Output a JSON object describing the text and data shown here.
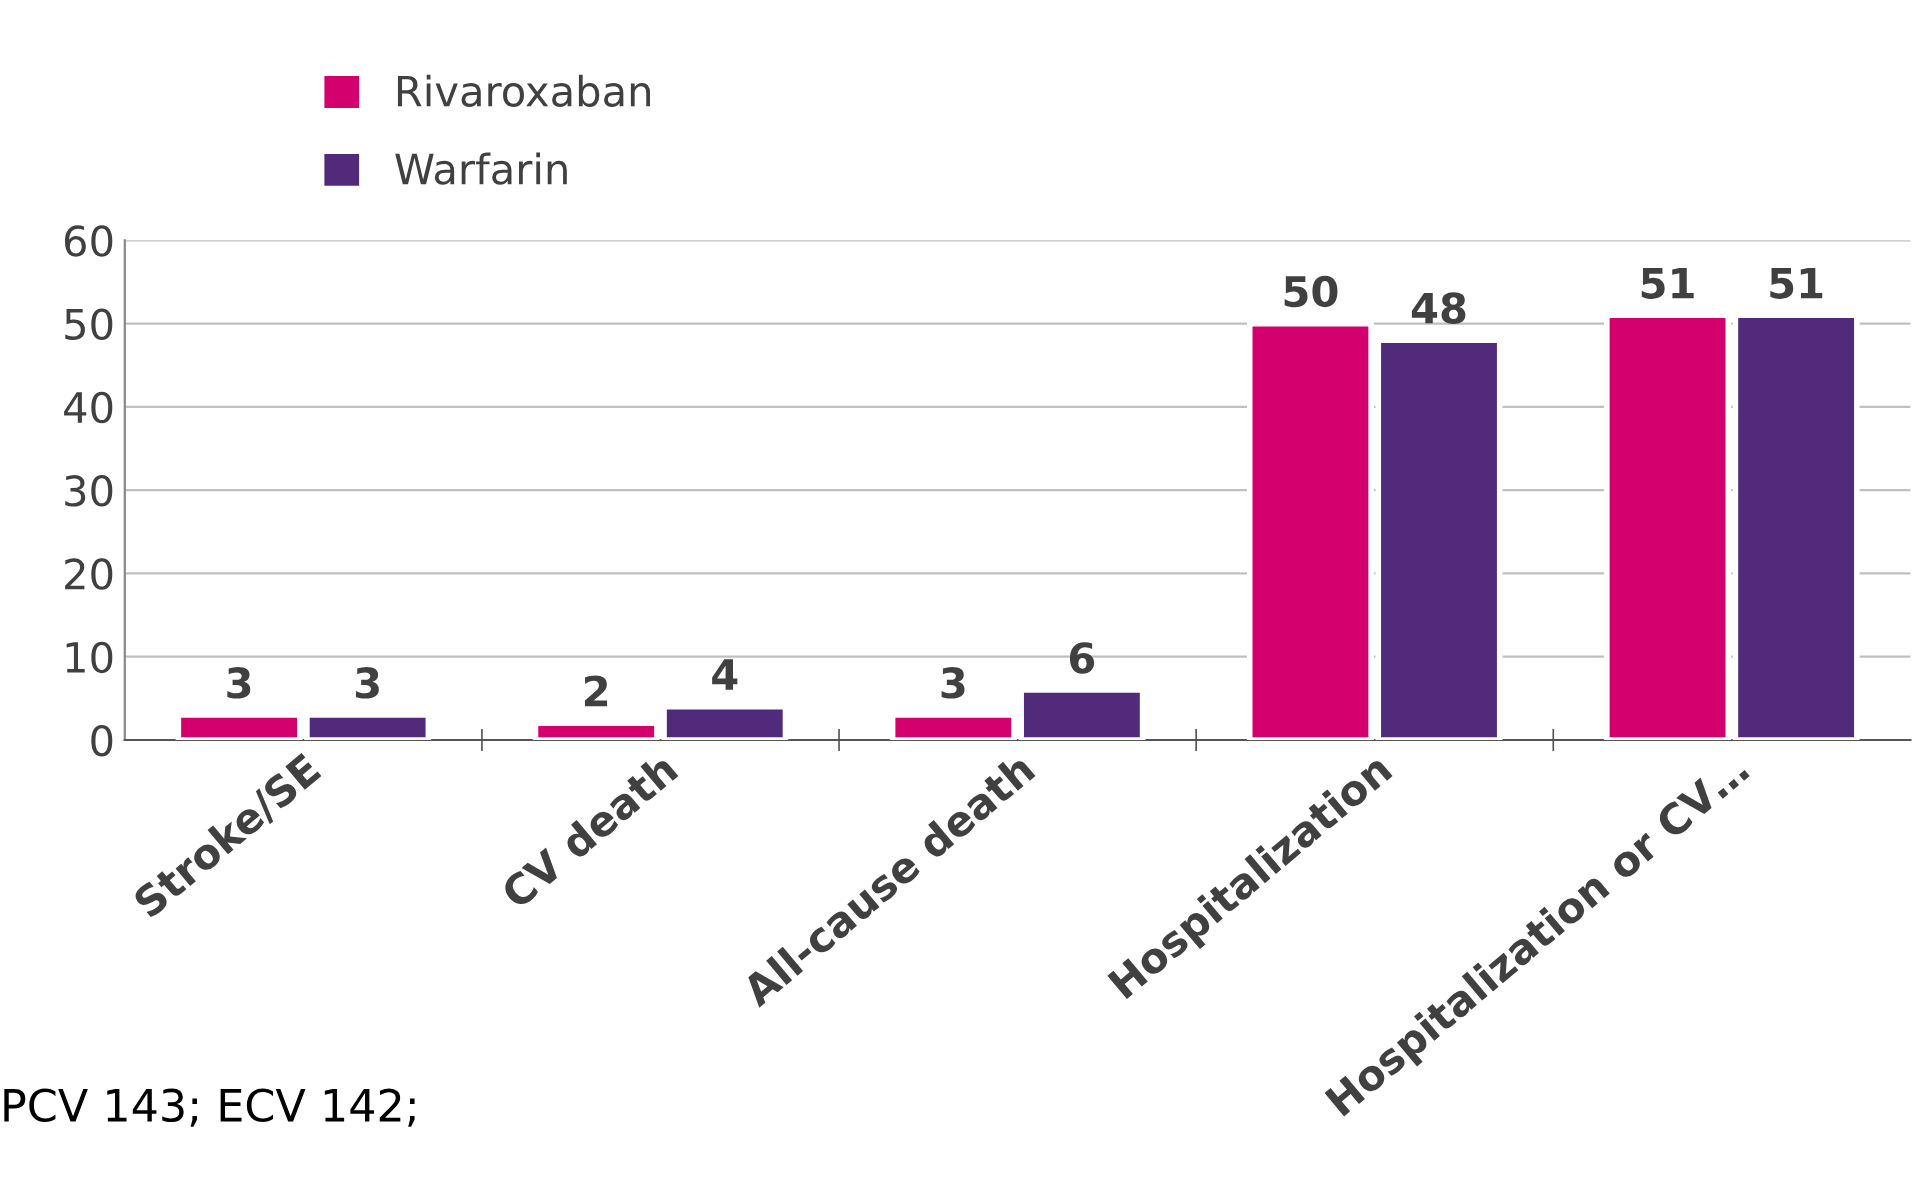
{
  "chart_data": {
    "type": "bar",
    "categories": [
      "Stroke/SE",
      "CV death",
      "All-cause death",
      "Hospitalization",
      "Hospitalization or CV…"
    ],
    "series": [
      {
        "name": "Rivaroxaban",
        "color": "#d4006e",
        "values": [
          3,
          2,
          3,
          50,
          51
        ]
      },
      {
        "name": "Warfarin",
        "color": "#522a7c",
        "values": [
          3,
          4,
          6,
          48,
          51
        ]
      }
    ],
    "ylim": [
      0,
      60
    ],
    "yticks": [
      0,
      10,
      20,
      30,
      40,
      50,
      60
    ],
    "grid": "y",
    "legend": "top left",
    "data_labels": true,
    "annotations": [
      "PCV 143; ECV 142;"
    ]
  }
}
